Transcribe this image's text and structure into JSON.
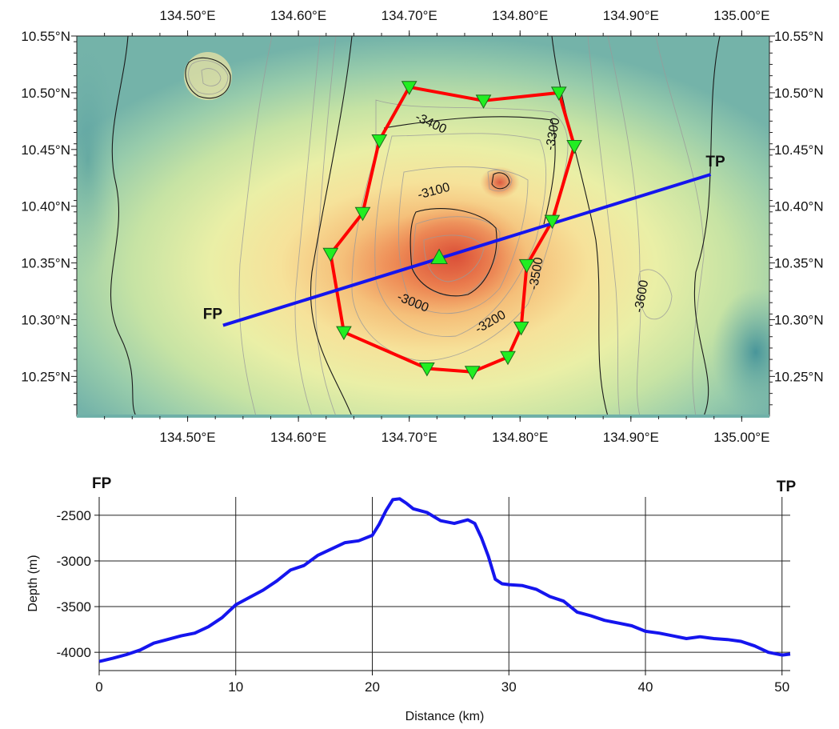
{
  "map": {
    "lon_min": 134.4,
    "lon_max": 135.025,
    "lat_min": 10.215,
    "lat_max": 10.55,
    "lon_ticks": [
      134.5,
      134.6,
      134.7,
      134.8,
      134.9,
      135.0
    ],
    "lon_tick_labels": [
      "134.50°E",
      "134.60°E",
      "134.70°E",
      "134.80°E",
      "134.90°E",
      "135.00°E"
    ],
    "lat_ticks": [
      10.25,
      10.3,
      10.35,
      10.4,
      10.45,
      10.5,
      10.55
    ],
    "lat_tick_labels": [
      "10.25°N",
      "10.30°N",
      "10.35°N",
      "10.40°N",
      "10.45°N",
      "10.50°N",
      "10.55°N"
    ],
    "contour_labels": [
      {
        "text": "-3400",
        "lon": 134.718,
        "lat": 10.47,
        "angle": 25
      },
      {
        "text": "-3300",
        "lon": 134.833,
        "lat": 10.463,
        "angle": -80
      },
      {
        "text": "-3100",
        "lon": 134.723,
        "lat": 10.41,
        "angle": -15
      },
      {
        "text": "-3000",
        "lon": 134.702,
        "lat": 10.312,
        "angle": 22
      },
      {
        "text": "-3200",
        "lon": 134.775,
        "lat": 10.295,
        "angle": -30
      },
      {
        "text": "-3500",
        "lon": 134.818,
        "lat": 10.34,
        "angle": -80
      },
      {
        "text": "-3600",
        "lon": 134.913,
        "lat": 10.32,
        "angle": -80
      }
    ],
    "survey_polygon_color": "#ff0000",
    "stations": [
      {
        "lon": 134.7,
        "lat": 10.505
      },
      {
        "lon": 134.767,
        "lat": 10.493
      },
      {
        "lon": 134.835,
        "lat": 10.5
      },
      {
        "lon": 134.849,
        "lat": 10.453
      },
      {
        "lon": 134.829,
        "lat": 10.387
      },
      {
        "lon": 134.806,
        "lat": 10.348
      },
      {
        "lon": 134.801,
        "lat": 10.293
      },
      {
        "lon": 134.789,
        "lat": 10.267
      },
      {
        "lon": 134.757,
        "lat": 10.254
      },
      {
        "lon": 134.716,
        "lat": 10.257
      },
      {
        "lon": 134.641,
        "lat": 10.289
      },
      {
        "lon": 134.629,
        "lat": 10.358
      },
      {
        "lon": 134.658,
        "lat": 10.394
      },
      {
        "lon": 134.673,
        "lat": 10.458
      }
    ],
    "summit_marker": {
      "lon": 134.727,
      "lat": 10.355
    },
    "station_color": "#22ee22",
    "profile_line": {
      "color": "#1515ee",
      "start": {
        "lon": 134.532,
        "lat": 10.295,
        "label": "FP"
      },
      "end": {
        "lon": 134.972,
        "lat": 10.428,
        "label": "TP"
      }
    }
  },
  "chart_data": {
    "type": "line",
    "title": "",
    "xlabel": "Distance (km)",
    "ylabel": "Depth (m)",
    "left_label": "FP",
    "right_label": "TP",
    "xlim": [
      0,
      50.6
    ],
    "ylim": [
      -4200,
      -2300
    ],
    "x_ticks": [
      0,
      10,
      20,
      30,
      40,
      50
    ],
    "x_tick_labels": [
      "0",
      "10",
      "20",
      "30",
      "40",
      "50"
    ],
    "y_ticks": [
      -2500,
      -3000,
      -3500,
      -4000
    ],
    "y_tick_labels": [
      "-2500",
      "-3000",
      "-3500",
      "-4000"
    ],
    "grid": true,
    "series": [
      {
        "color": "#1515ee",
        "x": [
          0,
          1,
          2,
          3,
          4,
          5,
          6,
          7,
          8,
          9,
          10,
          11,
          12,
          13,
          14,
          15,
          16,
          17,
          18,
          19,
          20,
          20.5,
          21,
          21.5,
          22,
          22.5,
          23,
          24,
          25,
          26,
          26.5,
          27,
          27.5,
          28,
          28.5,
          29,
          29.5,
          30,
          31,
          32,
          33,
          34,
          35,
          36,
          37,
          38,
          39,
          40,
          41,
          42,
          43,
          44,
          45,
          46,
          47,
          48,
          49,
          50,
          50.6
        ],
        "values": [
          -4100,
          -4065,
          -4025,
          -3975,
          -3900,
          -3860,
          -3820,
          -3790,
          -3720,
          -3620,
          -3480,
          -3400,
          -3320,
          -3220,
          -3100,
          -3050,
          -2940,
          -2870,
          -2800,
          -2780,
          -2720,
          -2600,
          -2450,
          -2330,
          -2320,
          -2370,
          -2430,
          -2470,
          -2560,
          -2590,
          -2570,
          -2550,
          -2590,
          -2750,
          -2950,
          -3200,
          -3250,
          -3260,
          -3270,
          -3310,
          -3390,
          -3440,
          -3560,
          -3600,
          -3650,
          -3680,
          -3710,
          -3770,
          -3790,
          -3820,
          -3850,
          -3830,
          -3850,
          -3860,
          -3880,
          -3930,
          -4000,
          -4030,
          -4020
        ]
      }
    ]
  }
}
